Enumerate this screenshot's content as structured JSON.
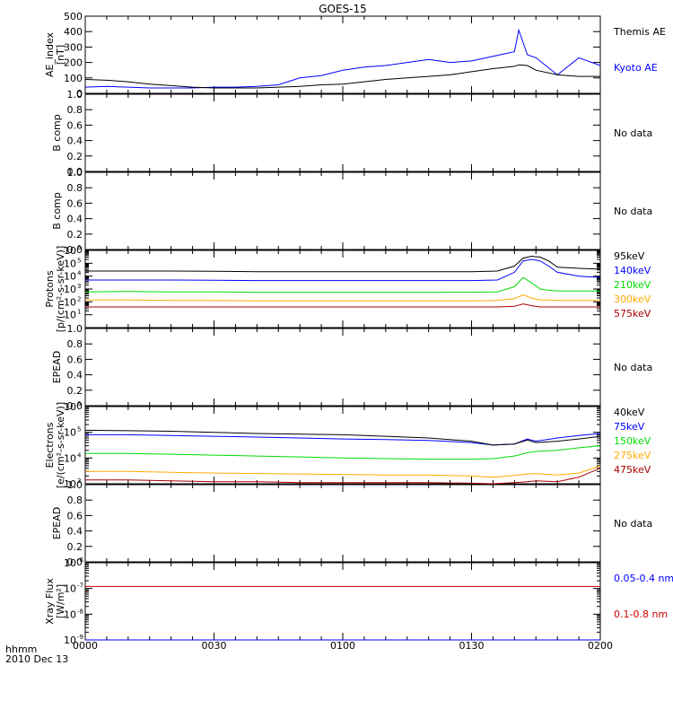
{
  "title": "GOES-15",
  "time_axis": {
    "tick_labels": [
      "0000",
      "0030",
      "0100",
      "0130",
      "0200"
    ],
    "corner_label_line1": "hhmm",
    "corner_label_line2": "2010 Dec 13"
  },
  "colors": {
    "black": "#000000",
    "blue": "#0000ff",
    "red": "#cc0000",
    "orange": "#ffaa00",
    "green": "#00dd00",
    "darkred": "#aa0000"
  },
  "chart_data": [
    {
      "id": "ae",
      "type": "line",
      "ylabel": [
        "AE_index",
        "[nT]"
      ],
      "ylim": [
        0,
        500
      ],
      "yticks": [
        0,
        100,
        200,
        300,
        400,
        500
      ],
      "ytick_labels": [
        "0",
        "100",
        "200",
        "300",
        "400",
        "500"
      ],
      "x": [
        "0000",
        "0005",
        "0010",
        "0015",
        "0020",
        "0025",
        "0030",
        "0035",
        "0040",
        "0045",
        "0050",
        "0055",
        "0100",
        "0105",
        "0110",
        "0115",
        "0120",
        "0125",
        "0130",
        "0135",
        "0140",
        "0141",
        "0143",
        "0145",
        "0150",
        "0155",
        "0200"
      ],
      "series": [
        {
          "name": "Kyoto AE",
          "color": "blue",
          "values": [
            40,
            45,
            40,
            35,
            35,
            35,
            40,
            40,
            45,
            55,
            100,
            115,
            150,
            170,
            180,
            200,
            220,
            200,
            210,
            240,
            270,
            410,
            250,
            230,
            120,
            230,
            180
          ]
        },
        {
          "name": "Themis AE",
          "color": "black",
          "values": [
            90,
            85,
            75,
            60,
            50,
            40,
            35,
            35,
            35,
            40,
            45,
            55,
            60,
            75,
            90,
            100,
            110,
            120,
            140,
            160,
            175,
            185,
            180,
            150,
            120,
            110,
            110
          ]
        }
      ]
    },
    {
      "id": "bcomp1",
      "type": "line",
      "ylabel": [
        "B comp"
      ],
      "ylim": [
        0,
        1.0
      ],
      "yticks": [
        0,
        0.2,
        0.4,
        0.6,
        0.8,
        1.0
      ],
      "ytick_labels": [
        "0.0",
        "0.2",
        "0.4",
        "0.6",
        "0.8",
        "1.0"
      ],
      "note": "No data",
      "series": []
    },
    {
      "id": "bcomp2",
      "type": "line",
      "ylabel": [
        "B comp"
      ],
      "ylim": [
        0,
        1.0
      ],
      "yticks": [
        0,
        0.2,
        0.4,
        0.6,
        0.8,
        1.0
      ],
      "ytick_labels": [
        "0.0",
        "0.2",
        "0.4",
        "0.6",
        "0.8",
        "1.0"
      ],
      "note": "No data",
      "series": []
    },
    {
      "id": "protons",
      "type": "line",
      "log": true,
      "ylabel": [
        "Protons",
        "[p/(cm²-s-sr-keV)]"
      ],
      "ylim": [
        1,
        1000000
      ],
      "ytick_bases": [
        "10",
        "10",
        "10",
        "10",
        "10",
        "10"
      ],
      "ytick_exps": [
        "1",
        "2",
        "3",
        "4",
        "5",
        "6"
      ],
      "yticks": [
        10,
        100,
        1000,
        10000,
        100000,
        1000000
      ],
      "x": [
        "0000",
        "0010",
        "0020",
        "0030",
        "0040",
        "0050",
        "0100",
        "0110",
        "0120",
        "0130",
        "0136",
        "0140",
        "0142",
        "0144",
        "0146",
        "0148",
        "0150",
        "0155",
        "0200"
      ],
      "series": [
        {
          "name": "575keV",
          "color": "darkred",
          "values": [
            40,
            40,
            40,
            40,
            40,
            40,
            40,
            40,
            40,
            40,
            40,
            45,
            70,
            50,
            40,
            40,
            40,
            40,
            40
          ]
        },
        {
          "name": "300keV",
          "color": "orange",
          "values": [
            140,
            140,
            130,
            130,
            120,
            120,
            120,
            120,
            120,
            120,
            130,
            180,
            350,
            200,
            140,
            140,
            130,
            130,
            130
          ]
        },
        {
          "name": "210keV",
          "color": "green",
          "values": [
            600,
            650,
            600,
            600,
            550,
            550,
            550,
            550,
            550,
            560,
            600,
            1500,
            8000,
            3000,
            1000,
            800,
            700,
            700,
            700
          ]
        },
        {
          "name": "140keV",
          "color": "blue",
          "values": [
            5000,
            5000,
            5000,
            4800,
            4500,
            4500,
            4500,
            4500,
            4500,
            4500,
            5000,
            20000,
            150000,
            200000,
            150000,
            60000,
            20000,
            10000,
            8000
          ]
        },
        {
          "name": "95keV",
          "color": "black",
          "values": [
            25000,
            25000,
            25000,
            24000,
            22000,
            22000,
            22000,
            22000,
            22000,
            22000,
            25000,
            60000,
            250000,
            350000,
            300000,
            150000,
            50000,
            40000,
            35000
          ]
        }
      ]
    },
    {
      "id": "epead1",
      "type": "line",
      "ylabel": [
        "EPEAD"
      ],
      "ylim": [
        0,
        1.0
      ],
      "yticks": [
        0,
        0.2,
        0.4,
        0.6,
        0.8,
        1.0
      ],
      "ytick_labels": [
        "0.0",
        "0.2",
        "0.4",
        "0.6",
        "0.8",
        "1.0"
      ],
      "note": "No data",
      "series": []
    },
    {
      "id": "electrons",
      "type": "line",
      "log": true,
      "ylabel": [
        "Electrons",
        "[e/(cm²-s-sr-keV)]"
      ],
      "ylim": [
        1000,
        1000000
      ],
      "ytick_bases": [
        "10",
        "10",
        "10",
        "10"
      ],
      "ytick_exps": [
        "3",
        "4",
        "5",
        "6"
      ],
      "yticks": [
        1000,
        10000,
        100000,
        1000000
      ],
      "x": [
        "0000",
        "0010",
        "0020",
        "0030",
        "0040",
        "0050",
        "0100",
        "0110",
        "0120",
        "0130",
        "0135",
        "0140",
        "0143",
        "0145",
        "0150",
        "0155",
        "0200"
      ],
      "series": [
        {
          "name": "475keV",
          "color": "darkred",
          "values": [
            1400,
            1400,
            1300,
            1200,
            1200,
            1100,
            1100,
            1100,
            1100,
            1050,
            1000,
            1100,
            1200,
            1300,
            1200,
            1800,
            4000
          ]
        },
        {
          "name": "275keV",
          "color": "orange",
          "values": [
            3000,
            3000,
            2800,
            2600,
            2500,
            2400,
            2300,
            2200,
            2200,
            2000,
            1800,
            2100,
            2400,
            2500,
            2200,
            2600,
            5000
          ]
        },
        {
          "name": "150keV",
          "color": "green",
          "values": [
            15000,
            15000,
            14000,
            13000,
            12000,
            11000,
            10000,
            9500,
            9000,
            9000,
            9500,
            12000,
            16000,
            18000,
            20000,
            25000,
            30000
          ]
        },
        {
          "name": "75keV",
          "color": "blue",
          "values": [
            80000,
            80000,
            75000,
            70000,
            65000,
            60000,
            55000,
            52000,
            48000,
            40000,
            32000,
            35000,
            55000,
            45000,
            60000,
            75000,
            90000
          ]
        },
        {
          "name": "40keV",
          "color": "black",
          "values": [
            120000,
            115000,
            110000,
            100000,
            90000,
            85000,
            80000,
            70000,
            60000,
            45000,
            32000,
            35000,
            50000,
            40000,
            45000,
            55000,
            70000
          ]
        }
      ]
    },
    {
      "id": "epead2",
      "type": "line",
      "ylabel": [
        "EPEAD"
      ],
      "ylim": [
        0,
        1.0
      ],
      "yticks": [
        0,
        0.2,
        0.4,
        0.6,
        0.8,
        1.0
      ],
      "ytick_labels": [
        "0.0",
        "0.2",
        "0.4",
        "0.6",
        "0.8",
        "1.0"
      ],
      "note": "No data",
      "series": []
    },
    {
      "id": "xray",
      "type": "line",
      "log": true,
      "ylabel": [
        "Xray Flux",
        "[W/m²]"
      ],
      "ylim": [
        1e-09,
        1e-06
      ],
      "ytick_bases": [
        "10",
        "10",
        "10",
        "10"
      ],
      "ytick_exps": [
        "-9",
        "-8",
        "-7",
        "-6"
      ],
      "yticks": [
        1e-09,
        1e-08,
        1e-07,
        1e-06
      ],
      "x": [
        "0000",
        "0010",
        "0020",
        "0030",
        "0040",
        "0050",
        "0100",
        "0110",
        "0120",
        "0130",
        "0140",
        "0150",
        "0200"
      ],
      "series": [
        {
          "name": "0.1-0.8 nm",
          "color": "red",
          "values": [
            1.2e-07,
            1.2e-07,
            1.2e-07,
            1.2e-07,
            1.2e-07,
            1.2e-07,
            1.2e-07,
            1.2e-07,
            1.2e-07,
            1.2e-07,
            1.2e-07,
            1.2e-07,
            1.2e-07
          ]
        },
        {
          "name": "0.05-0.4 nm",
          "color": "blue",
          "values": [
            1e-09,
            1e-09,
            1e-09,
            1e-09,
            1e-09,
            1e-09,
            1e-09,
            1e-09,
            1e-09,
            1e-09,
            1e-09,
            1e-09,
            1e-09
          ]
        }
      ]
    }
  ]
}
